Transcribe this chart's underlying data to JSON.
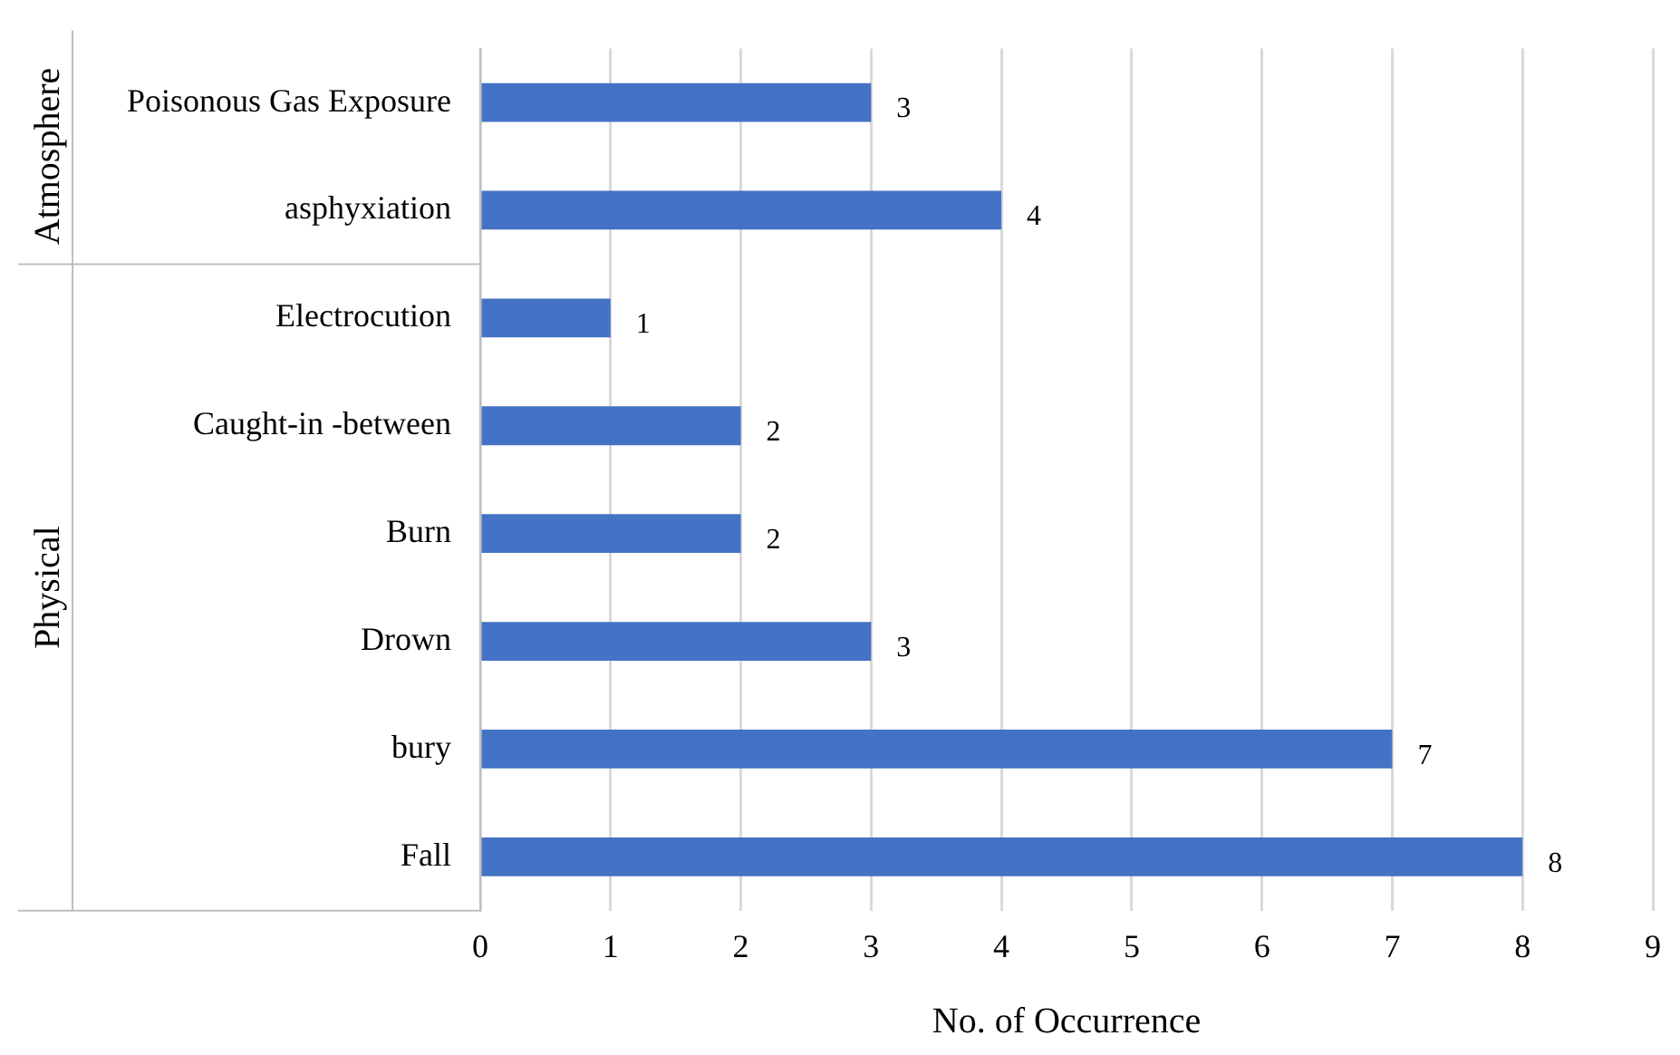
{
  "chart_data": {
    "type": "bar",
    "orientation": "horizontal",
    "xlabel": "No. of Occurrence",
    "categories": [
      "Poisonous Gas Exposure",
      "asphyxiation",
      "Electrocution",
      "Caught-in -between",
      "Burn",
      "Drown",
      "bury",
      "Fall"
    ],
    "values": [
      3,
      4,
      1,
      2,
      2,
      3,
      7,
      8
    ],
    "color": "#4472c4",
    "xlim": [
      0,
      9
    ],
    "xticks": [
      0,
      1,
      2,
      3,
      4,
      5,
      6,
      7,
      8,
      9
    ],
    "grid": "x",
    "legend": false,
    "data_labels": true,
    "annotations": [
      "Atmosphere",
      "Physical"
    ]
  }
}
